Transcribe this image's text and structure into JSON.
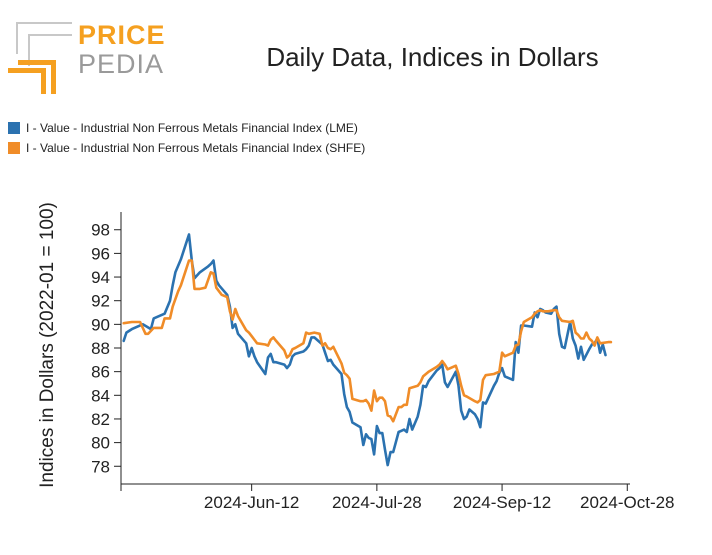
{
  "brand": {
    "word1": "PRICE",
    "word2": "PEDIA",
    "color_primary": "#f5a020",
    "color_secondary": "#c8c8c8"
  },
  "chart_data": {
    "type": "line",
    "title": "Daily Data, Indices in Dollars",
    "xlabel": "",
    "ylabel": "Indices in Dollars (2022-01 = 100)",
    "ylim": [
      76.5,
      99.5
    ],
    "xlim": [
      "2024-04-25",
      "2024-10-29"
    ],
    "y_ticks": [
      78,
      80,
      82,
      84,
      86,
      88,
      90,
      92,
      94,
      96,
      98
    ],
    "x_ticks": [
      {
        "date": "2024-06-12",
        "label": "2024-Jun-12"
      },
      {
        "date": "2024-07-28",
        "label": "2024-Jul-28"
      },
      {
        "date": "2024-09-12",
        "label": "2024-Sep-12"
      },
      {
        "date": "2024-10-28",
        "label": "2024-Oct-28"
      }
    ],
    "grid": false,
    "legend_position": "top-left",
    "series": [
      {
        "name": "I - Value - Industrial Non Ferrous Metals Financial Index (LME)",
        "color": "#2b72b0",
        "points": [
          [
            "2024-04-26",
            88.6
          ],
          [
            "2024-04-27",
            89.3
          ],
          [
            "2024-04-29",
            89.6
          ],
          [
            "2024-05-01",
            89.8
          ],
          [
            "2024-05-03",
            90.0
          ],
          [
            "2024-05-06",
            89.6
          ],
          [
            "2024-05-07",
            90.5
          ],
          [
            "2024-05-09",
            90.7
          ],
          [
            "2024-05-11",
            90.9
          ],
          [
            "2024-05-13",
            92.0
          ],
          [
            "2024-05-14",
            93.3
          ],
          [
            "2024-05-15",
            94.4
          ],
          [
            "2024-05-17",
            95.5
          ],
          [
            "2024-05-19",
            96.9
          ],
          [
            "2024-05-20",
            97.6
          ],
          [
            "2024-05-21",
            95.4
          ],
          [
            "2024-05-22",
            93.9
          ],
          [
            "2024-05-24",
            94.4
          ],
          [
            "2024-05-27",
            94.9
          ],
          [
            "2024-05-28",
            95.1
          ],
          [
            "2024-05-29",
            95.4
          ],
          [
            "2024-05-30",
            93.7
          ],
          [
            "2024-05-31",
            93.3
          ],
          [
            "2024-06-03",
            92.5
          ],
          [
            "2024-06-04",
            91.5
          ],
          [
            "2024-06-05",
            89.7
          ],
          [
            "2024-06-06",
            90.0
          ],
          [
            "2024-06-07",
            89.2
          ],
          [
            "2024-06-10",
            88.4
          ],
          [
            "2024-06-11",
            87.3
          ],
          [
            "2024-06-12",
            88.0
          ],
          [
            "2024-06-13",
            87.3
          ],
          [
            "2024-06-14",
            86.8
          ],
          [
            "2024-06-17",
            85.8
          ],
          [
            "2024-06-18",
            87.2
          ],
          [
            "2024-06-19",
            87.5
          ],
          [
            "2024-06-20",
            86.8
          ],
          [
            "2024-06-21",
            86.8
          ],
          [
            "2024-06-24",
            86.6
          ],
          [
            "2024-06-25",
            86.3
          ],
          [
            "2024-06-26",
            86.6
          ],
          [
            "2024-06-27",
            87.3
          ],
          [
            "2024-06-28",
            87.5
          ],
          [
            "2024-07-01",
            87.7
          ],
          [
            "2024-07-02",
            87.9
          ],
          [
            "2024-07-03",
            88.2
          ],
          [
            "2024-07-04",
            88.9
          ],
          [
            "2024-07-05",
            88.9
          ],
          [
            "2024-07-08",
            88.3
          ],
          [
            "2024-07-09",
            87.6
          ],
          [
            "2024-07-10",
            86.9
          ],
          [
            "2024-07-11",
            87.0
          ],
          [
            "2024-07-12",
            86.6
          ],
          [
            "2024-07-15",
            85.8
          ],
          [
            "2024-07-16",
            84.1
          ],
          [
            "2024-07-17",
            83.0
          ],
          [
            "2024-07-18",
            82.6
          ],
          [
            "2024-07-19",
            81.7
          ],
          [
            "2024-07-22",
            81.3
          ],
          [
            "2024-07-23",
            79.8
          ],
          [
            "2024-07-24",
            80.7
          ],
          [
            "2024-07-25",
            80.4
          ],
          [
            "2024-07-26",
            80.3
          ],
          [
            "2024-07-27",
            79.0
          ],
          [
            "2024-07-28",
            81.4
          ],
          [
            "2024-07-29",
            80.8
          ],
          [
            "2024-07-30",
            80.8
          ],
          [
            "2024-07-31",
            79.4
          ],
          [
            "2024-08-01",
            78.1
          ],
          [
            "2024-08-02",
            79.2
          ],
          [
            "2024-08-03",
            79.2
          ],
          [
            "2024-08-05",
            80.9
          ],
          [
            "2024-08-06",
            81.0
          ],
          [
            "2024-08-07",
            81.1
          ],
          [
            "2024-08-08",
            80.9
          ],
          [
            "2024-08-09",
            82.0
          ],
          [
            "2024-08-10",
            81.1
          ],
          [
            "2024-08-12",
            82.2
          ],
          [
            "2024-08-13",
            83.2
          ],
          [
            "2024-08-14",
            84.8
          ],
          [
            "2024-08-15",
            84.7
          ],
          [
            "2024-08-16",
            85.2
          ],
          [
            "2024-08-19",
            86.1
          ],
          [
            "2024-08-20",
            86.3
          ],
          [
            "2024-08-21",
            86.6
          ],
          [
            "2024-08-22",
            85.1
          ],
          [
            "2024-08-23",
            84.7
          ],
          [
            "2024-08-26",
            86.0
          ],
          [
            "2024-08-27",
            84.8
          ],
          [
            "2024-08-28",
            82.7
          ],
          [
            "2024-08-29",
            82.0
          ],
          [
            "2024-08-30",
            82.2
          ],
          [
            "2024-08-31",
            82.8
          ],
          [
            "2024-09-02",
            82.4
          ],
          [
            "2024-09-03",
            82.0
          ],
          [
            "2024-09-04",
            81.3
          ],
          [
            "2024-09-05",
            83.4
          ],
          [
            "2024-09-06",
            83.3
          ],
          [
            "2024-09-09",
            84.8
          ],
          [
            "2024-09-10",
            85.2
          ],
          [
            "2024-09-11",
            85.9
          ],
          [
            "2024-09-12",
            86.3
          ],
          [
            "2024-09-13",
            85.6
          ],
          [
            "2024-09-16",
            85.3
          ],
          [
            "2024-09-17",
            88.5
          ],
          [
            "2024-09-18",
            87.6
          ],
          [
            "2024-09-19",
            89.9
          ],
          [
            "2024-09-20",
            89.9
          ],
          [
            "2024-09-23",
            89.8
          ],
          [
            "2024-09-24",
            91.0
          ],
          [
            "2024-09-25",
            90.6
          ],
          [
            "2024-09-26",
            91.3
          ],
          [
            "2024-09-27",
            91.2
          ],
          [
            "2024-09-28",
            91.0
          ],
          [
            "2024-09-30",
            90.9
          ],
          [
            "2024-10-01",
            91.3
          ],
          [
            "2024-10-02",
            91.5
          ],
          [
            "2024-10-03",
            89.2
          ],
          [
            "2024-10-04",
            88.1
          ],
          [
            "2024-10-05",
            88.0
          ],
          [
            "2024-10-07",
            90.2
          ],
          [
            "2024-10-08",
            88.8
          ],
          [
            "2024-10-09",
            88.2
          ],
          [
            "2024-10-10",
            87.1
          ],
          [
            "2024-10-11",
            88.1
          ],
          [
            "2024-10-12",
            87.0
          ],
          [
            "2024-10-14",
            87.9
          ],
          [
            "2024-10-15",
            88.3
          ],
          [
            "2024-10-16",
            88.4
          ],
          [
            "2024-10-17",
            88.8
          ],
          [
            "2024-10-18",
            87.6
          ],
          [
            "2024-10-19",
            88.3
          ],
          [
            "2024-10-20",
            87.4
          ]
        ]
      },
      {
        "name": "I - Value - Industrial Non Ferrous Metals Financial Index (SHFE)",
        "color": "#f08c28",
        "points": [
          [
            "2024-04-26",
            90.1
          ],
          [
            "2024-04-29",
            90.2
          ],
          [
            "2024-05-02",
            90.2
          ],
          [
            "2024-05-04",
            89.2
          ],
          [
            "2024-05-05",
            89.2
          ],
          [
            "2024-05-07",
            89.7
          ],
          [
            "2024-05-10",
            89.7
          ],
          [
            "2024-05-11",
            90.5
          ],
          [
            "2024-05-13",
            90.5
          ],
          [
            "2024-05-14",
            91.5
          ],
          [
            "2024-05-16",
            92.8
          ],
          [
            "2024-05-17",
            93.3
          ],
          [
            "2024-05-20",
            95.4
          ],
          [
            "2024-05-21",
            95.4
          ],
          [
            "2024-05-22",
            93.0
          ],
          [
            "2024-05-24",
            93.0
          ],
          [
            "2024-05-26",
            93.1
          ],
          [
            "2024-05-28",
            94.4
          ],
          [
            "2024-05-29",
            94.3
          ],
          [
            "2024-05-30",
            93.1
          ],
          [
            "2024-06-01",
            92.5
          ],
          [
            "2024-06-03",
            92.3
          ],
          [
            "2024-06-04",
            91.1
          ],
          [
            "2024-06-05",
            90.4
          ],
          [
            "2024-06-06",
            91.3
          ],
          [
            "2024-06-07",
            90.7
          ],
          [
            "2024-06-10",
            89.5
          ],
          [
            "2024-06-11",
            89.3
          ],
          [
            "2024-06-12",
            89.0
          ],
          [
            "2024-06-14",
            88.4
          ],
          [
            "2024-06-17",
            88.3
          ],
          [
            "2024-06-18",
            88.2
          ],
          [
            "2024-06-19",
            88.7
          ],
          [
            "2024-06-20",
            88.9
          ],
          [
            "2024-06-21",
            88.6
          ],
          [
            "2024-06-24",
            87.8
          ],
          [
            "2024-06-25",
            87.2
          ],
          [
            "2024-06-26",
            87.4
          ],
          [
            "2024-06-27",
            87.9
          ],
          [
            "2024-06-28",
            88.0
          ],
          [
            "2024-07-01",
            88.4
          ],
          [
            "2024-07-02",
            89.3
          ],
          [
            "2024-07-03",
            89.2
          ],
          [
            "2024-07-05",
            89.3
          ],
          [
            "2024-07-07",
            89.2
          ],
          [
            "2024-07-08",
            88.2
          ],
          [
            "2024-07-09",
            88.4
          ],
          [
            "2024-07-10",
            88.0
          ],
          [
            "2024-07-11",
            87.9
          ],
          [
            "2024-07-12",
            88.1
          ],
          [
            "2024-07-15",
            86.7
          ],
          [
            "2024-07-16",
            85.9
          ],
          [
            "2024-07-17",
            85.7
          ],
          [
            "2024-07-18",
            85.4
          ],
          [
            "2024-07-19",
            83.7
          ],
          [
            "2024-07-22",
            83.5
          ],
          [
            "2024-07-23",
            83.5
          ],
          [
            "2024-07-24",
            83.6
          ],
          [
            "2024-07-25",
            83.3
          ],
          [
            "2024-07-26",
            82.7
          ],
          [
            "2024-07-27",
            84.4
          ],
          [
            "2024-07-28",
            83.5
          ],
          [
            "2024-07-29",
            83.8
          ],
          [
            "2024-07-30",
            83.8
          ],
          [
            "2024-07-31",
            83.5
          ],
          [
            "2024-08-01",
            82.3
          ],
          [
            "2024-08-02",
            82.2
          ],
          [
            "2024-08-03",
            81.8
          ],
          [
            "2024-08-05",
            83.0
          ],
          [
            "2024-08-06",
            83.0
          ],
          [
            "2024-08-07",
            83.2
          ],
          [
            "2024-08-08",
            83.2
          ],
          [
            "2024-08-09",
            84.6
          ],
          [
            "2024-08-12",
            84.8
          ],
          [
            "2024-08-13",
            85.1
          ],
          [
            "2024-08-14",
            85.6
          ],
          [
            "2024-08-16",
            86.0
          ],
          [
            "2024-08-19",
            86.4
          ],
          [
            "2024-08-20",
            86.6
          ],
          [
            "2024-08-21",
            86.9
          ],
          [
            "2024-08-22",
            86.6
          ],
          [
            "2024-08-23",
            86.2
          ],
          [
            "2024-08-26",
            86.5
          ],
          [
            "2024-08-27",
            85.8
          ],
          [
            "2024-08-28",
            84.8
          ],
          [
            "2024-08-29",
            84.0
          ],
          [
            "2024-08-30",
            83.9
          ],
          [
            "2024-09-02",
            83.5
          ],
          [
            "2024-09-03",
            83.4
          ],
          [
            "2024-09-04",
            83.6
          ],
          [
            "2024-09-05",
            85.3
          ],
          [
            "2024-09-06",
            85.7
          ],
          [
            "2024-09-09",
            85.8
          ],
          [
            "2024-09-10",
            85.9
          ],
          [
            "2024-09-11",
            86.0
          ],
          [
            "2024-09-12",
            87.6
          ],
          [
            "2024-09-13",
            87.3
          ],
          [
            "2024-09-16",
            87.6
          ],
          [
            "2024-09-17",
            88.2
          ],
          [
            "2024-09-18",
            88.3
          ],
          [
            "2024-09-19",
            89.4
          ],
          [
            "2024-09-20",
            90.2
          ],
          [
            "2024-09-23",
            90.6
          ],
          [
            "2024-09-24",
            90.9
          ],
          [
            "2024-09-25",
            91.1
          ],
          [
            "2024-09-26",
            91.2
          ],
          [
            "2024-09-27",
            91.1
          ],
          [
            "2024-09-29",
            91.1
          ],
          [
            "2024-10-01",
            91.2
          ],
          [
            "2024-10-02",
            91.2
          ],
          [
            "2024-10-03",
            90.6
          ],
          [
            "2024-10-04",
            90.3
          ],
          [
            "2024-10-07",
            90.2
          ],
          [
            "2024-10-08",
            90.3
          ],
          [
            "2024-10-09",
            89.3
          ],
          [
            "2024-10-10",
            89.1
          ],
          [
            "2024-10-11",
            88.8
          ],
          [
            "2024-10-12",
            88.8
          ],
          [
            "2024-10-13",
            89.3
          ],
          [
            "2024-10-14",
            88.8
          ],
          [
            "2024-10-15",
            88.6
          ],
          [
            "2024-10-16",
            88.2
          ],
          [
            "2024-10-17",
            88.9
          ],
          [
            "2024-10-18",
            88.4
          ],
          [
            "2024-10-21",
            88.5
          ],
          [
            "2024-10-22",
            88.5
          ]
        ]
      }
    ]
  }
}
